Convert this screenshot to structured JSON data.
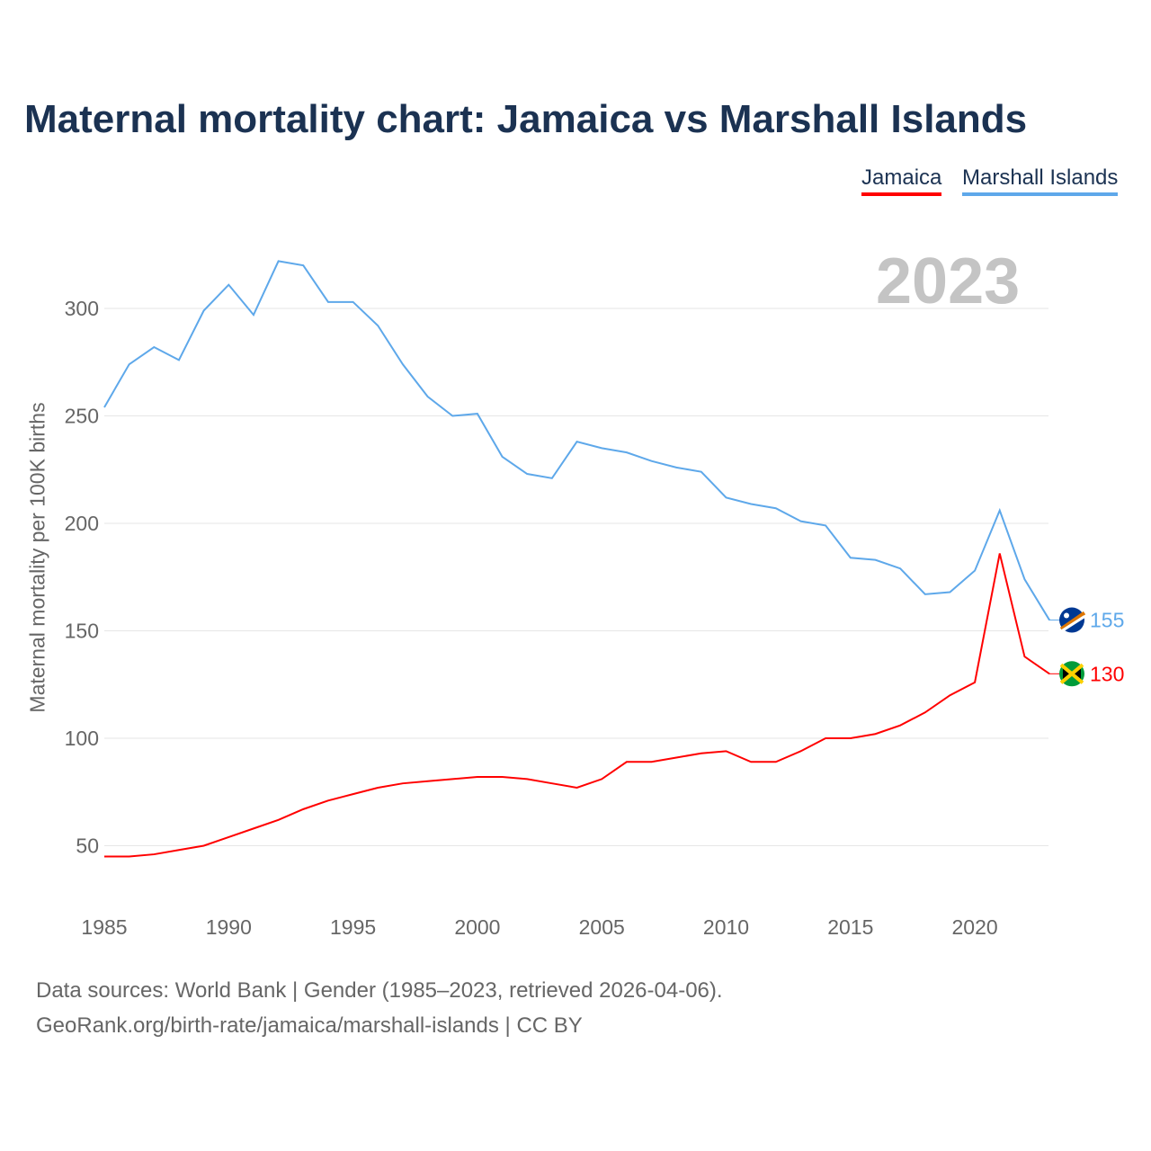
{
  "title": "Maternal mortality chart: Jamaica vs Marshall Islands",
  "year_label": "2023",
  "footer": {
    "line1": "Data sources: World Bank | Gender (1985–2023, retrieved 2026-04-06).",
    "line2": "GeoRank.org/birth-rate/jamaica/marshall-islands | CC BY"
  },
  "chart_data": {
    "type": "line",
    "title": "Maternal mortality chart: Jamaica vs Marshall Islands",
    "xlabel": "",
    "ylabel": "Maternal mortality per 100K births",
    "xlim": [
      1985,
      2023
    ],
    "ylim": [
      25,
      330
    ],
    "x_ticks": [
      1985,
      1990,
      1995,
      2000,
      2005,
      2010,
      2015,
      2020
    ],
    "y_ticks": [
      50,
      100,
      150,
      200,
      250,
      300
    ],
    "grid": true,
    "legend": "top-right",
    "x": [
      1985,
      1986,
      1987,
      1988,
      1989,
      1990,
      1991,
      1992,
      1993,
      1994,
      1995,
      1996,
      1997,
      1998,
      1999,
      2000,
      2001,
      2002,
      2003,
      2004,
      2005,
      2006,
      2007,
      2008,
      2009,
      2010,
      2011,
      2012,
      2013,
      2014,
      2015,
      2016,
      2017,
      2018,
      2019,
      2020,
      2021,
      2022,
      2023
    ],
    "series": [
      {
        "name": "Jamaica",
        "color": "#ff0000",
        "end_label": "130",
        "values": [
          45,
          45,
          46,
          48,
          50,
          54,
          58,
          62,
          67,
          71,
          74,
          77,
          79,
          80,
          81,
          82,
          82,
          81,
          79,
          77,
          81,
          89,
          89,
          91,
          93,
          94,
          89,
          89,
          94,
          100,
          100,
          102,
          106,
          112,
          120,
          126,
          186,
          138,
          130
        ]
      },
      {
        "name": "Marshall Islands",
        "color": "#5ea8ea",
        "end_label": "155",
        "values": [
          254,
          274,
          282,
          276,
          299,
          311,
          297,
          322,
          320,
          303,
          303,
          292,
          274,
          259,
          250,
          251,
          231,
          223,
          221,
          238,
          235,
          233,
          229,
          226,
          224,
          212,
          209,
          207,
          201,
          199,
          184,
          183,
          179,
          167,
          168,
          178,
          206,
          174,
          155
        ]
      }
    ]
  }
}
